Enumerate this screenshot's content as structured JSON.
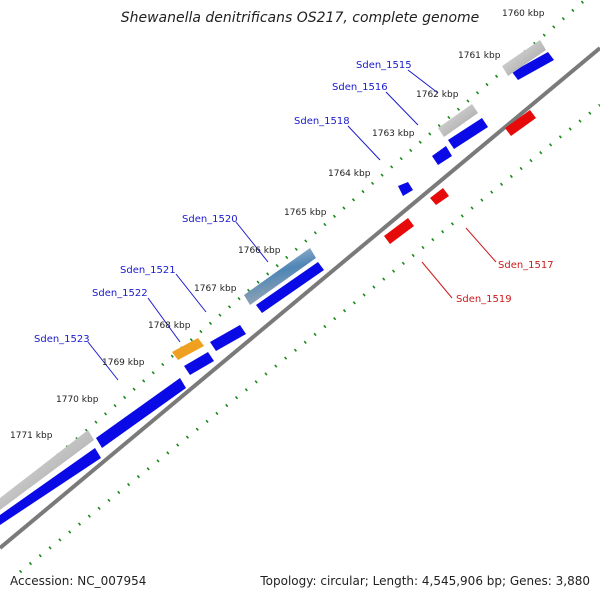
{
  "title": "Shewanella denitrificans OS217, complete genome",
  "footer": {
    "accession": "Accession: NC_007954",
    "summary": "Topology: circular; Length: 4,545,906 bp; Genes: 3,880"
  },
  "kbp_ticks": [
    "1760 kbp",
    "1761 kbp",
    "1762 kbp",
    "1763 kbp",
    "1764 kbp",
    "1765 kbp",
    "1766 kbp",
    "1767 kbp",
    "1768 kbp",
    "1769 kbp",
    "1770 kbp",
    "1771 kbp"
  ],
  "gene_labels_plus": [
    "Sden_1515",
    "Sden_1516",
    "Sden_1518",
    "Sden_1520",
    "Sden_1521",
    "Sden_1522",
    "Sden_1523"
  ],
  "gene_labels_minus": [
    "Sden_1517",
    "Sden_1519"
  ],
  "colors": {
    "plus_strand": "#0a0ae6",
    "minus_strand": "#e60a0a",
    "backbone": "#7a7a7a",
    "tick": "#1a8a1a",
    "label_plus": "#1a1acc",
    "label_minus": "#cc1a1a",
    "gray_feature": "#c8c8c8",
    "orange_feature": "#f0a020",
    "steel_feature": "#5b8db8"
  }
}
